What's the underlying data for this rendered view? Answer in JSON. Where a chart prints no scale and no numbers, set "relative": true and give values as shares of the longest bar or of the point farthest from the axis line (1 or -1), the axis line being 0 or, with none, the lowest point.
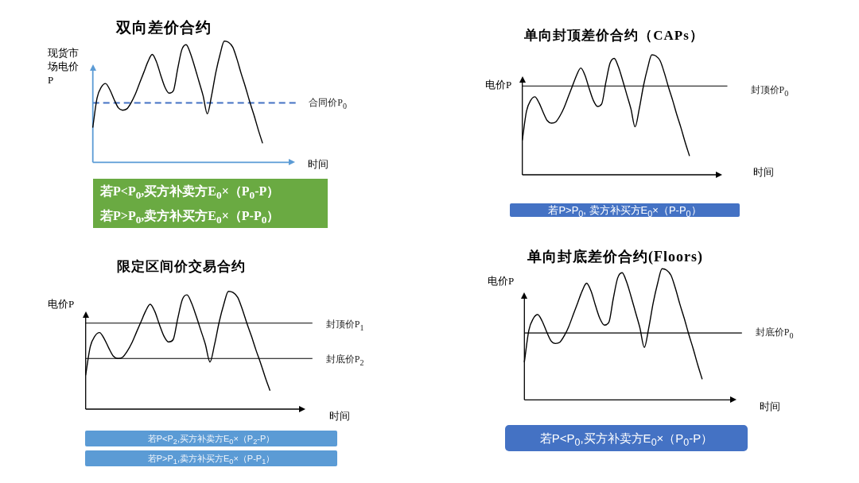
{
  "chart_data": [
    {
      "type": "line",
      "title": "双向差价合约",
      "xlabel": "时间",
      "ylabel": "现货市场电价P",
      "relative": true,
      "tick_labels": false,
      "categories": [
        null,
        null,
        null,
        null,
        null,
        null,
        null,
        null,
        null,
        null,
        null,
        null,
        null,
        null,
        null,
        null,
        null,
        null,
        null,
        null,
        null,
        null,
        null,
        null,
        null,
        null,
        null,
        null,
        null,
        null,
        null,
        null,
        null,
        null,
        null,
        null,
        null,
        null,
        null,
        null,
        null,
        null,
        null,
        null,
        null,
        null,
        null,
        null
      ],
      "series": [
        {
          "color": "#000000",
          "values": [
            0.29,
            0.53,
            0.62,
            0.65,
            0.6,
            0.52,
            0.45,
            0.43,
            0.44,
            0.49,
            0.56,
            0.65,
            0.74,
            0.83,
            0.89,
            0.83,
            0.72,
            0.62,
            0.57,
            0.59,
            0.77,
            0.93,
            0.97,
            0.9,
            0.79,
            0.67,
            0.55,
            0.4,
            0.55,
            0.74,
            0.89,
            1.0,
            0.99,
            0.95,
            0.85,
            0.73,
            0.62,
            0.5,
            0.39,
            0.27,
            0.16,
            null,
            null,
            null,
            null,
            null,
            null,
            null
          ]
        }
      ],
      "ref_lines": [
        {
          "axis": "y",
          "value": 0.49,
          "label": "合同价P$_{0}$",
          "color": "#4472c4",
          "line_style": "dashed"
        }
      ],
      "annotations": [
        "若P<P$_{0}$,买方补卖方E$_{0}$×（P$_{0}$-P）",
        "若P>P$_{0}$,卖方补买方E$_{0}$×（P-P$_{0}$）"
      ]
    },
    {
      "type": "line",
      "title": "单向封顶差价合约（CAPs）",
      "xlabel": "时间",
      "ylabel": "电价P",
      "relative": true,
      "tick_labels": false,
      "categories": [
        null,
        null,
        null,
        null,
        null,
        null,
        null,
        null,
        null,
        null,
        null,
        null,
        null,
        null,
        null,
        null,
        null,
        null,
        null,
        null,
        null,
        null,
        null,
        null,
        null,
        null,
        null,
        null,
        null,
        null,
        null,
        null,
        null,
        null,
        null,
        null,
        null,
        null,
        null,
        null,
        null,
        null,
        null,
        null,
        null,
        null,
        null,
        null
      ],
      "series": [
        {
          "color": "#000000",
          "values": [
            0.29,
            0.53,
            0.62,
            0.65,
            0.6,
            0.52,
            0.45,
            0.43,
            0.44,
            0.49,
            0.56,
            0.65,
            0.74,
            0.83,
            0.89,
            0.83,
            0.72,
            0.62,
            0.57,
            0.59,
            0.77,
            0.93,
            0.97,
            0.9,
            0.79,
            0.67,
            0.55,
            0.4,
            0.55,
            0.74,
            0.89,
            1.0,
            0.99,
            0.95,
            0.85,
            0.73,
            0.62,
            0.5,
            0.39,
            0.27,
            0.16,
            null,
            null,
            null,
            null,
            null,
            null,
            null
          ]
        }
      ],
      "ref_lines": [
        {
          "axis": "y",
          "value": 0.74,
          "label": "封顶价P$_{0}$",
          "color": "#000000"
        }
      ],
      "annotations": [
        "若P>P$_{0}$, 卖方补买方E$_{0}$×（P-P$_{0}$）"
      ]
    },
    {
      "type": "line",
      "title": "限定区间价交易合约",
      "xlabel": "时间",
      "ylabel": "电价P",
      "relative": true,
      "tick_labels": false,
      "categories": [
        null,
        null,
        null,
        null,
        null,
        null,
        null,
        null,
        null,
        null,
        null,
        null,
        null,
        null,
        null,
        null,
        null,
        null,
        null,
        null,
        null,
        null,
        null,
        null,
        null,
        null,
        null,
        null,
        null,
        null,
        null,
        null,
        null,
        null,
        null,
        null,
        null,
        null,
        null,
        null,
        null,
        null,
        null,
        null,
        null,
        null,
        null,
        null
      ],
      "series": [
        {
          "color": "#000000",
          "values": [
            0.29,
            0.53,
            0.62,
            0.65,
            0.6,
            0.52,
            0.45,
            0.43,
            0.44,
            0.49,
            0.56,
            0.65,
            0.74,
            0.83,
            0.89,
            0.83,
            0.72,
            0.62,
            0.57,
            0.59,
            0.77,
            0.93,
            0.97,
            0.9,
            0.79,
            0.67,
            0.55,
            0.4,
            0.55,
            0.74,
            0.89,
            1.0,
            0.99,
            0.95,
            0.85,
            0.73,
            0.62,
            0.5,
            0.39,
            0.27,
            0.16,
            null,
            null,
            null,
            null,
            null,
            null,
            null
          ]
        }
      ],
      "ref_lines": [
        {
          "axis": "y",
          "value": 0.73,
          "label": "封顶价P$_{1}$",
          "color": "#000000"
        },
        {
          "axis": "y",
          "value": 0.43,
          "label": "封底价P$_{2}$",
          "color": "#000000"
        }
      ],
      "annotations": [
        "若P<P$_{2}$,买方补卖方E$_{0}$×（P$_{2}$-P）",
        "若P>P$_{1}$,卖方补买方E$_{0}$×（P-P$_{1}$）"
      ]
    },
    {
      "type": "line",
      "title": "单向封底差价合约(Floors)",
      "xlabel": "时间",
      "ylabel": "电价P",
      "relative": true,
      "tick_labels": false,
      "categories": [
        null,
        null,
        null,
        null,
        null,
        null,
        null,
        null,
        null,
        null,
        null,
        null,
        null,
        null,
        null,
        null,
        null,
        null,
        null,
        null,
        null,
        null,
        null,
        null,
        null,
        null,
        null,
        null,
        null,
        null,
        null,
        null,
        null,
        null,
        null,
        null,
        null,
        null,
        null,
        null,
        null,
        null,
        null,
        null,
        null,
        null,
        null,
        null
      ],
      "series": [
        {
          "color": "#000000",
          "values": [
            0.29,
            0.53,
            0.62,
            0.65,
            0.6,
            0.52,
            0.45,
            0.43,
            0.44,
            0.49,
            0.56,
            0.65,
            0.74,
            0.83,
            0.89,
            0.83,
            0.72,
            0.62,
            0.57,
            0.59,
            0.77,
            0.93,
            0.97,
            0.9,
            0.79,
            0.67,
            0.55,
            0.4,
            0.55,
            0.74,
            0.89,
            1.0,
            0.99,
            0.95,
            0.85,
            0.73,
            0.62,
            0.5,
            0.39,
            0.27,
            0.16,
            null,
            null,
            null,
            null,
            null,
            null,
            null
          ]
        }
      ],
      "ref_lines": [
        {
          "axis": "y",
          "value": 0.51,
          "label": "封底价P$_{0}$",
          "color": "#000000"
        }
      ],
      "annotations": [
        "若P<P$_{0}$,买方补卖方E$_{0}$×（P$_{0}$-P）"
      ]
    }
  ]
}
